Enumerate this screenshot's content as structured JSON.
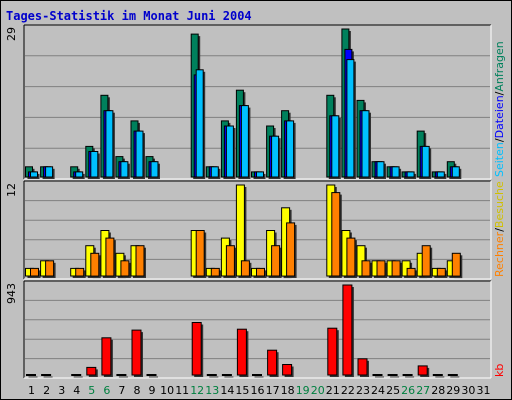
{
  "title": "Tages-Statistik im Monat Juni 2004",
  "right_labels": {
    "hits": "Anfragen",
    "files": "Dateien",
    "pages": "Seiten",
    "visits": "Besuche",
    "sites": "Rechner",
    "kb": "kb",
    "sep": "/"
  },
  "colors": {
    "hits": "#00805c",
    "files": "#0000ff",
    "pages": "#00c0ff",
    "visits": "#ffff00",
    "sites": "#ff8000",
    "kb": "#ff0000",
    "weekday": "#000000",
    "weekend": "#008040"
  },
  "chart_data": [
    {
      "type": "bar",
      "panel": "requests",
      "ymax_label": "29",
      "ylim": [
        0,
        29
      ],
      "categories": [
        "1",
        "2",
        "3",
        "4",
        "5",
        "6",
        "7",
        "8",
        "9",
        "10",
        "11",
        "12",
        "13",
        "14",
        "15",
        "16",
        "17",
        "18",
        "19",
        "20",
        "21",
        "22",
        "23",
        "24",
        "25",
        "26",
        "27",
        "28",
        "29",
        "30",
        "31"
      ],
      "weekend_days": [
        "5",
        "6",
        "12",
        "13",
        "19",
        "20",
        "26",
        "27"
      ],
      "series": [
        {
          "name": "Anfragen",
          "values": [
            2,
            2,
            0,
            2,
            6,
            16,
            4,
            11,
            4,
            0,
            0,
            28,
            2,
            11,
            17,
            1,
            10,
            13,
            0,
            0,
            16,
            29,
            15,
            3,
            2,
            1,
            9,
            1,
            3,
            0,
            0
          ]
        },
        {
          "name": "Dateien",
          "values": [
            1,
            2,
            0,
            1,
            5,
            13,
            3,
            9,
            3,
            0,
            0,
            20,
            2,
            10,
            14,
            1,
            8,
            11,
            0,
            0,
            12,
            25,
            13,
            3,
            2,
            1,
            6,
            1,
            2,
            0,
            0
          ]
        },
        {
          "name": "Seiten",
          "values": [
            1,
            2,
            0,
            1,
            5,
            13,
            3,
            9,
            3,
            0,
            0,
            21,
            2,
            10,
            14,
            1,
            8,
            11,
            0,
            0,
            12,
            23,
            13,
            3,
            2,
            1,
            6,
            1,
            2,
            0,
            0
          ]
        }
      ]
    },
    {
      "type": "bar",
      "panel": "visits",
      "ymax_label": "12",
      "ylim": [
        0,
        12
      ],
      "categories": [
        "1",
        "2",
        "3",
        "4",
        "5",
        "6",
        "7",
        "8",
        "9",
        "10",
        "11",
        "12",
        "13",
        "14",
        "15",
        "16",
        "17",
        "18",
        "19",
        "20",
        "21",
        "22",
        "23",
        "24",
        "25",
        "26",
        "27",
        "28",
        "29",
        "30",
        "31"
      ],
      "series": [
        {
          "name": "Besuche",
          "values": [
            1,
            2,
            0,
            1,
            4,
            6,
            3,
            4,
            0,
            0,
            0,
            6,
            1,
            5,
            12,
            1,
            6,
            9,
            0,
            0,
            12,
            6,
            4,
            2,
            2,
            2,
            3,
            1,
            2,
            0,
            0
          ]
        },
        {
          "name": "Rechner",
          "values": [
            1,
            2,
            0,
            1,
            3,
            5,
            2,
            4,
            0,
            0,
            0,
            6,
            1,
            4,
            2,
            1,
            4,
            7,
            0,
            0,
            11,
            5,
            2,
            2,
            2,
            1,
            4,
            1,
            3,
            0,
            0
          ]
        }
      ]
    },
    {
      "type": "bar",
      "panel": "kb",
      "ymax_label": "943",
      "ylim": [
        0,
        943
      ],
      "categories": [
        "1",
        "2",
        "3",
        "4",
        "5",
        "6",
        "7",
        "8",
        "9",
        "10",
        "11",
        "12",
        "13",
        "14",
        "15",
        "16",
        "17",
        "18",
        "19",
        "20",
        "21",
        "22",
        "23",
        "24",
        "25",
        "26",
        "27",
        "28",
        "29",
        "30",
        "31"
      ],
      "series": [
        {
          "name": "kb",
          "values": [
            5,
            5,
            0,
            5,
            80,
            390,
            5,
            470,
            5,
            0,
            0,
            550,
            5,
            5,
            480,
            5,
            260,
            110,
            0,
            0,
            490,
            943,
            170,
            5,
            5,
            5,
            95,
            5,
            5,
            0,
            0
          ]
        }
      ]
    }
  ]
}
